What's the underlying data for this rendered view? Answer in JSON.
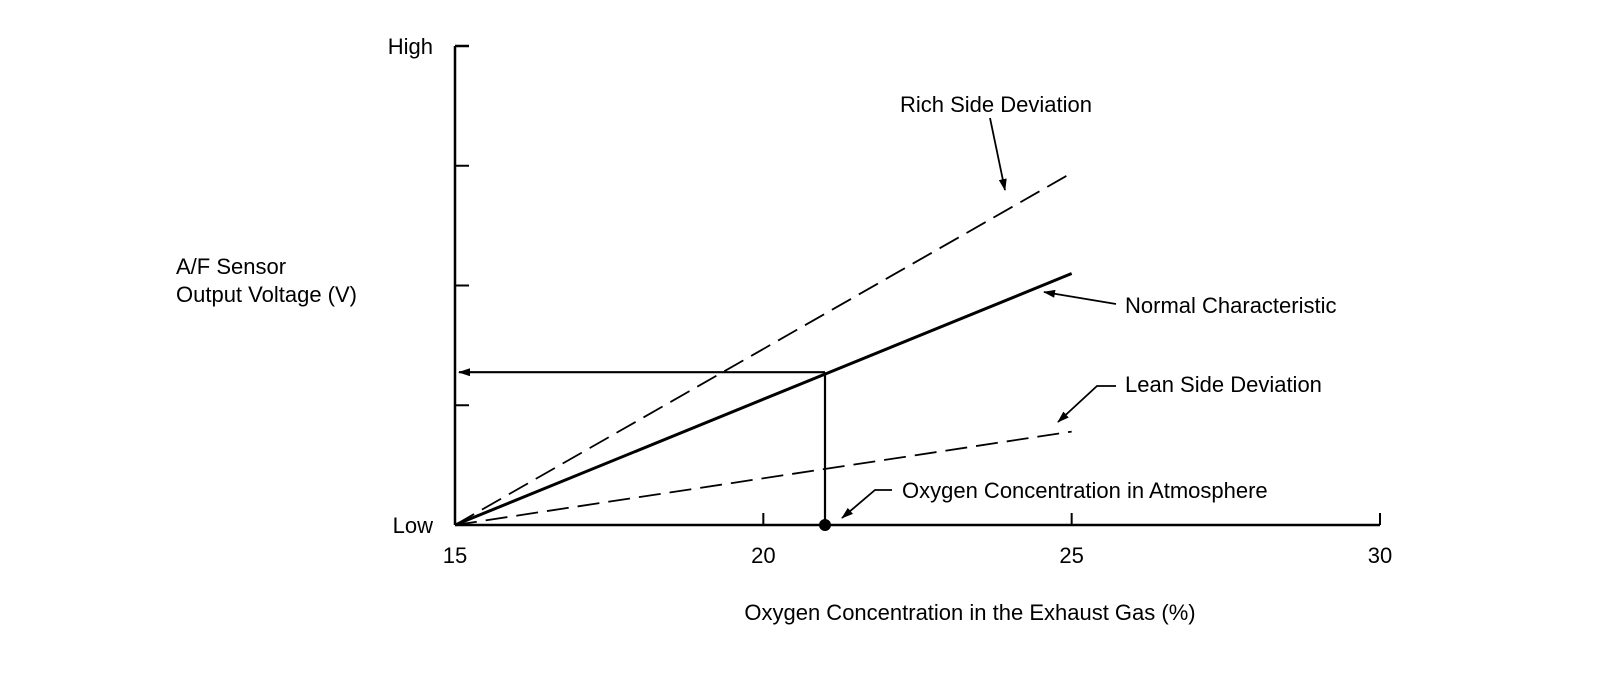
{
  "chart_data": {
    "type": "line",
    "title": "",
    "xlabel": "Oxygen Concentration in the Exhaust Gas (%)",
    "ylabel_lines": [
      "A/F Sensor",
      "Output Voltage (V)"
    ],
    "xlim": [
      15,
      30
    ],
    "x_ticks": [
      15,
      20,
      25,
      30
    ],
    "x_tick_labels": [
      "15",
      "20",
      "25",
      "30"
    ],
    "y_axis": {
      "scale": "relative (0 = Low, 1 = High)",
      "ylim": [
        0,
        1
      ],
      "ticks": [
        0,
        0.25,
        0.5,
        0.75,
        1
      ],
      "labels": [
        {
          "value": 0,
          "text": "Low"
        },
        {
          "value": 1,
          "text": "High"
        }
      ]
    },
    "series": [
      {
        "name": "Rich Side Deviation",
        "style": "dashed",
        "x": [
          15,
          25
        ],
        "y": [
          0,
          0.735
        ]
      },
      {
        "name": "Normal Characteristic",
        "style": "solid",
        "x": [
          15,
          25
        ],
        "y": [
          0,
          0.525
        ]
      },
      {
        "name": "Lean Side Deviation",
        "style": "dashed",
        "x": [
          15,
          25
        ],
        "y": [
          0,
          0.195
        ]
      }
    ],
    "reference": {
      "label": "Oxygen Concentration in Atmosphere",
      "x": 21,
      "y_on_normal": 0.319
    },
    "annotations": [
      {
        "text": "Rich Side Deviation",
        "points_to": "Rich Side Deviation"
      },
      {
        "text": "Normal Characteristic",
        "points_to": "Normal Characteristic"
      },
      {
        "text": "Lean Side Deviation",
        "points_to": "Lean Side Deviation"
      },
      {
        "text": "Oxygen Concentration in Atmosphere",
        "points_to": "reference point"
      }
    ],
    "grid": false,
    "legend": "none (callout labels)"
  }
}
